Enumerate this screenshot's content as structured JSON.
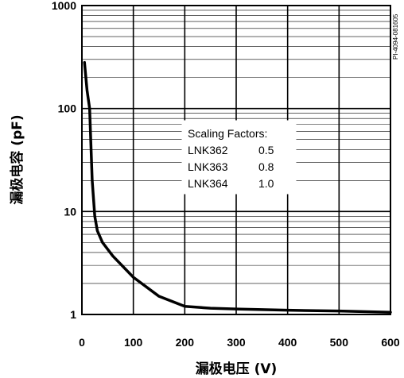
{
  "chart_data": {
    "type": "line",
    "title": "",
    "xlabel": "漏极电压 (V)",
    "ylabel": "漏极电容 (pF)",
    "xlim": [
      0,
      600
    ],
    "ylim": [
      1,
      1000
    ],
    "yscale": "log",
    "grid": true,
    "x_ticks": [
      "0",
      "100",
      "200",
      "300",
      "400",
      "500",
      "600"
    ],
    "y_ticks": [
      "1",
      "10",
      "100",
      "1000"
    ],
    "series": [
      {
        "x": [
          5,
          10,
          15,
          20,
          25,
          30,
          40,
          60,
          100,
          150,
          200,
          250,
          300,
          400,
          500,
          600
        ],
        "y": [
          280,
          150,
          100,
          20,
          9,
          6.5,
          5,
          3.7,
          2.3,
          1.5,
          1.2,
          1.15,
          1.13,
          1.1,
          1.08,
          1.05
        ]
      }
    ],
    "annotation": {
      "heading": "Scaling Factors:",
      "rows": [
        {
          "part": "LNK362",
          "factor": "0.5"
        },
        {
          "part": "LNK363",
          "factor": "0.8"
        },
        {
          "part": "LNK364",
          "factor": "1.0"
        }
      ]
    },
    "side_id": "PI-4094-081605"
  }
}
